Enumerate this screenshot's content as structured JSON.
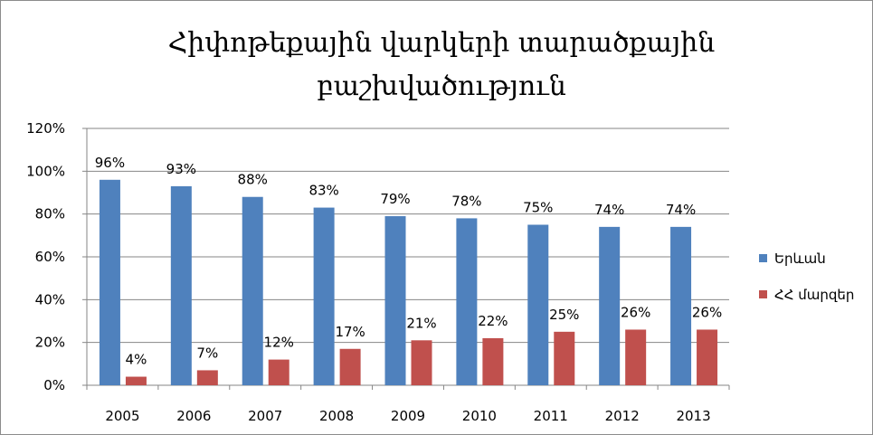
{
  "chart_data": {
    "type": "bar",
    "title": "Հիփոթեքային վարկերի տարածքային բաշխվածություն",
    "title_lines": [
      "Հիփոթեքային վարկերի տարածքային",
      "բաշխվածություն"
    ],
    "categories": [
      "2005",
      "2006",
      "2007",
      "2008",
      "2009",
      "2010",
      "2011",
      "2012",
      "2013"
    ],
    "series": [
      {
        "name": "Երևան",
        "color": "#4F81BD",
        "values": [
          96,
          93,
          88,
          83,
          79,
          78,
          75,
          74,
          74
        ],
        "labels": [
          "96%",
          "93%",
          "88%",
          "83%",
          "79%",
          "78%",
          "75%",
          "74%",
          "74%"
        ]
      },
      {
        "name": "ՀՀ մարզեր",
        "color": "#C0504D",
        "values": [
          4,
          7,
          12,
          17,
          21,
          22,
          25,
          26,
          26
        ],
        "labels": [
          "4%",
          "7%",
          "12%",
          "17%",
          "21%",
          "22%",
          "25%",
          "26%",
          "26%"
        ]
      }
    ],
    "y_ticks": [
      "0%",
      "20%",
      "40%",
      "60%",
      "80%",
      "100%",
      "120%"
    ],
    "ylim": [
      0,
      120
    ],
    "grid": true,
    "legend_position": "right"
  }
}
